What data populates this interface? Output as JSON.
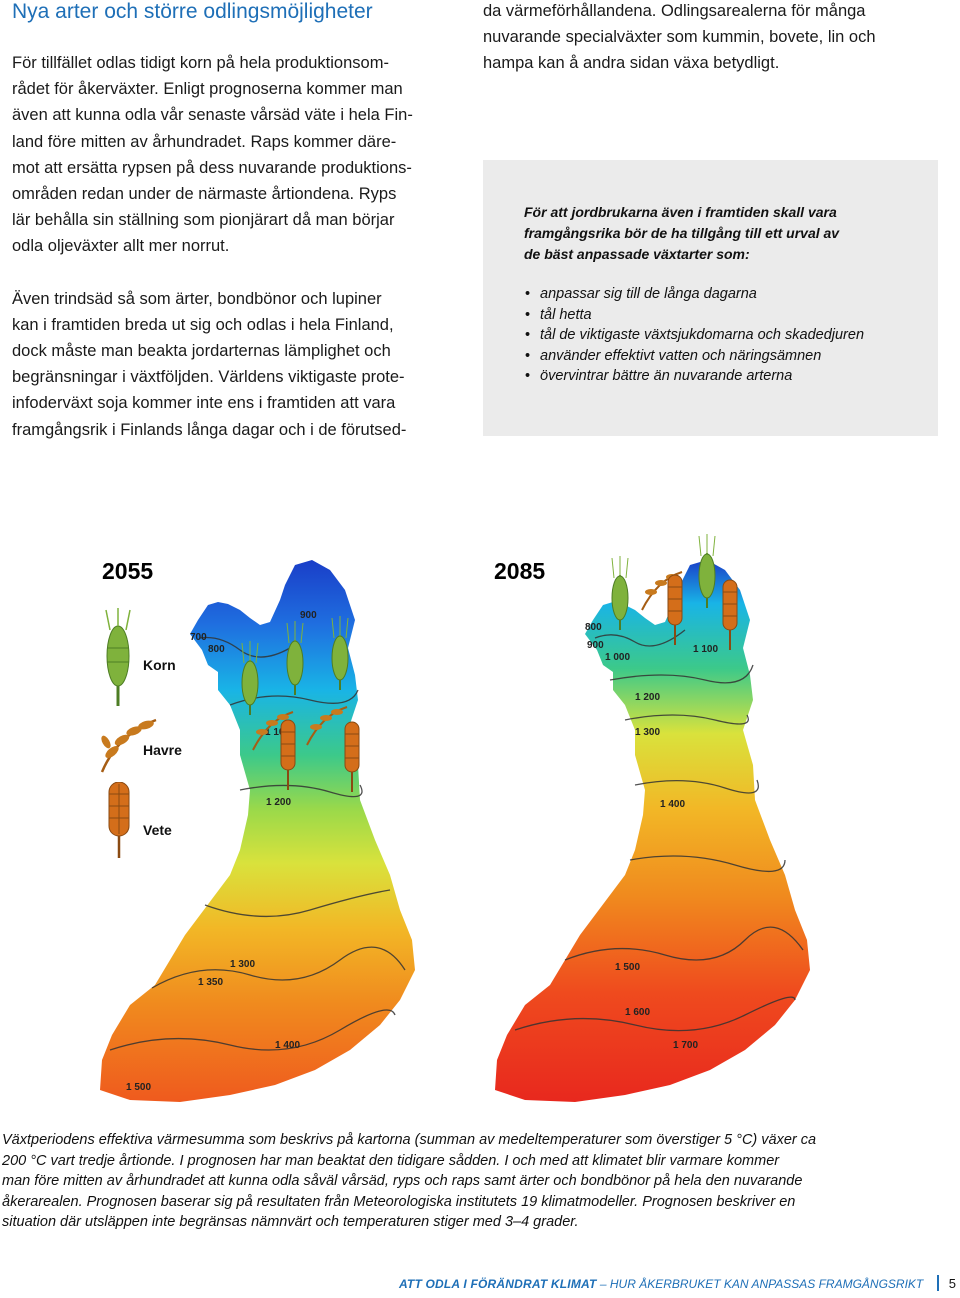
{
  "heading": "Nya arter och större odlingsmöjligheter",
  "left_column": {
    "paragraph1": [
      "För tillfället odlas tidigt korn på hela produktionsom-",
      "rådet för åkerväxter. Enligt prognoserna kommer man",
      "även att kunna odla vår senaste vårsäd väte i hela Fin-",
      "land före mitten av århundradet. Raps kommer däre-",
      "mot att ersätta rypsen på dess nuvarande produktions-",
      "områden redan under de närmaste årtiondena. Ryps",
      "lär behålla sin ställning som pionjärart då man börjar",
      "odla oljeväxter allt mer norrut."
    ],
    "paragraph2": [
      "Även trindsäd så som ärter, bondbönor och lupiner",
      "kan i framtiden breda ut sig och odlas i hela Finland,",
      "dock måste man beakta jordarternas lämplighet och",
      "begränsningar i växtföljden. Världens viktigaste prote-",
      "infoderväxt soja kommer inte ens i framtiden att vara",
      "framgångsrik i Finlands långa dagar och i de förutsed-"
    ]
  },
  "right_column": {
    "paragraph": [
      "da värmeförhållandena. Odlingsarealerna för många",
      "nuvarande specialväxter som kummin, bovete, lin och",
      "hampa kan å andra sidan växa betydligt."
    ]
  },
  "info_box": {
    "intro": [
      "För att jordbrukarna även i framtiden skall vara",
      "framgångsrika bör de ha tillgång till ett urval av",
      "de bäst anpassade växtarter som:"
    ],
    "bullets": [
      "anpassar sig till de långa dagarna",
      "tål hetta",
      "tål de viktigaste växtsjukdomarna och skadedjuren",
      "använder effektivt vatten och näringsämnen",
      "övervintrar bättre än nuvarande arterna"
    ],
    "bullet_char": "•"
  },
  "maps": {
    "map_2055": {
      "year": "2055",
      "isolines": [
        "700",
        "800",
        "900",
        "1 100",
        "1 200",
        "1 300",
        "1 350",
        "1 400",
        "1 500"
      ]
    },
    "map_2085": {
      "year": "2085",
      "isolines": [
        "800",
        "900",
        "1 000",
        "1 100",
        "1 200",
        "1 300",
        "1 400",
        "1 500",
        "1 600",
        "1 700"
      ]
    },
    "legend": {
      "korn": "Korn",
      "havre": "Havre",
      "vete": "Vete"
    },
    "colors": {
      "cold": "#1a3ec8",
      "cool": "#19b4e6",
      "mild": "#3cc98a",
      "warm": "#d9e23c",
      "hot": "#f08a1e",
      "hottest": "#e8281e",
      "barley": "#7fb23c",
      "oats": "#c87a1e",
      "wheat": "#d46e1a"
    }
  },
  "caption": [
    "Växtperiodens effektiva värmesumma som beskrivs på kartorna (summan av medeltemperaturer som överstiger 5 °C) växer ca",
    "200 °C vart tredje årtionde. I prognosen har man beaktat den tidigare sådden. I och med att klimatet blir varmare kommer",
    "man före mitten av århundradet att kunna odla såväl vårsäd, ryps och raps samt ärter och bondbönor på hela den nuvarande",
    "åkerarealen. Prognosen baserar sig på resultaten från Meteorologiska institutets 19 klimatmodeller. Prognosen beskriver en",
    "situation där utsläppen inte begränsas nämnvärt och temperaturen stiger med 3–4 grader."
  ],
  "footer": {
    "title": "ATT ODLA I FÖRÄNDRAT KLIMAT",
    "dash": " – ",
    "subtitle": "HUR ÅKERBRUKET KAN ANPASSAS FRAMGÅNGSRIKT",
    "page": "5"
  }
}
